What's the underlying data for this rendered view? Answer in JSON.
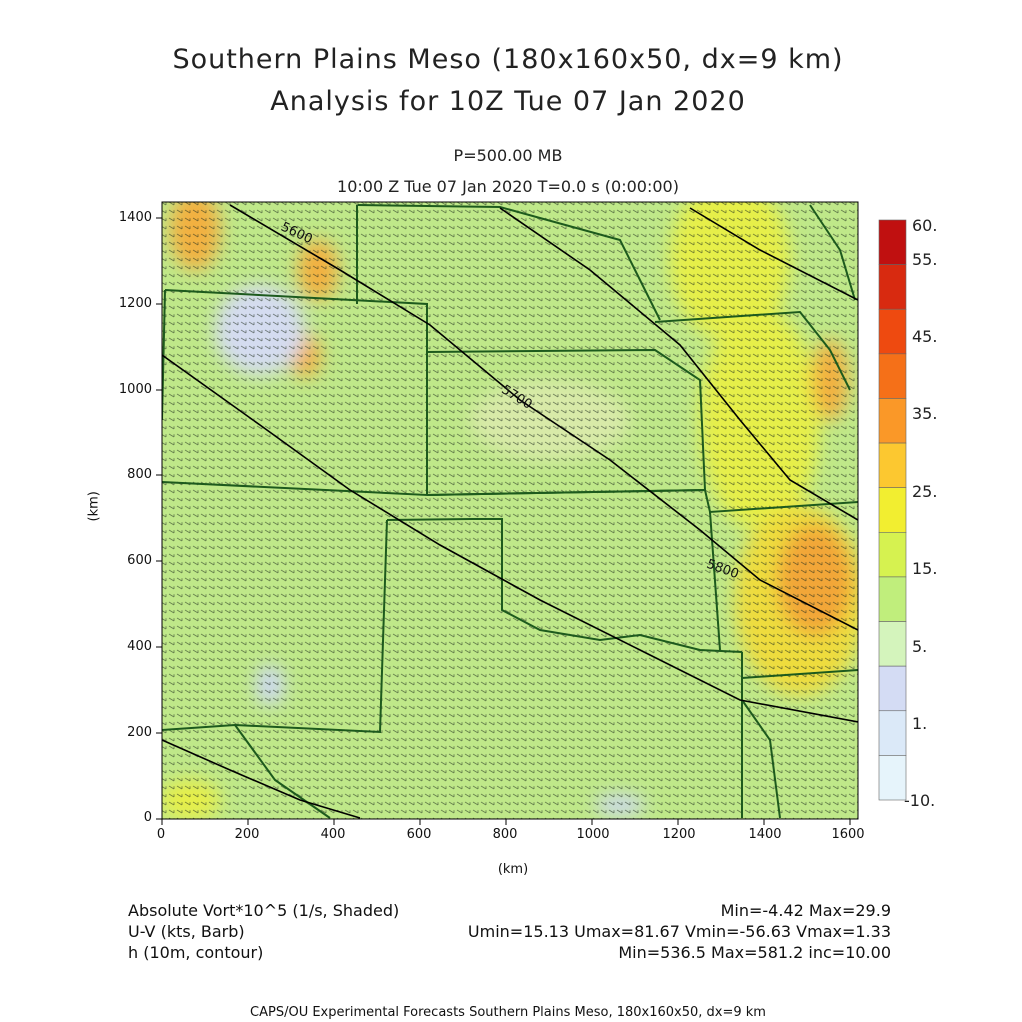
{
  "title": {
    "line1": "Southern Plains Meso (180x160x50, dx=9 km)",
    "line2": "Analysis for 10Z Tue 07 Jan 2020"
  },
  "subtitle": {
    "level": "P=500.00 MB",
    "time": "10:00 Z Tue 07 Jan 2020    T=0.0 s (0:00:00)"
  },
  "axes": {
    "x_label": "(km)",
    "y_label": "(km)",
    "x_ticks": [
      "0",
      "200",
      "400",
      "600",
      "800",
      "1000",
      "1200",
      "1400",
      "1600"
    ],
    "y_ticks": [
      "0",
      "200",
      "400",
      "600",
      "800",
      "1000",
      "1200",
      "1400"
    ]
  },
  "colorbar": {
    "labels": [
      "60.",
      "55.",
      "45.",
      "35.",
      "25.",
      "15.",
      "5.",
      "1.",
      "-10."
    ],
    "colors": [
      "#c01010",
      "#d82a10",
      "#ee4a10",
      "#f57018",
      "#fa9828",
      "#fcc830",
      "#f2ee30",
      "#d6f250",
      "#c0ee7c",
      "#d4f4bc",
      "#d4dcf4",
      "#dbe9f8",
      "#e6f4fb"
    ]
  },
  "map": {
    "contour_labels": [
      "5600",
      "5700",
      "5800"
    ],
    "colors": {
      "base": "#bfe889",
      "yellow": "#e9ef40",
      "orange": "#f2a638",
      "lavender": "#ccd8f2",
      "borders": "#1d5a1d",
      "contour": "#000000",
      "barb": "#1c2a1c"
    }
  },
  "legend": {
    "field1": "Absolute Vort*10^5 (1/s, Shaded)",
    "field1_stats": "Min=-4.42 Max=29.9",
    "field2": "U-V (kts, Barb)",
    "field2_stats": "Umin=15.13 Umax=81.67 Vmin=-56.63 Vmax=1.33",
    "field3": "h (10m, contour)",
    "field3_stats": "Min=536.5 Max=581.2 inc=10.00"
  },
  "footer": "CAPS/OU Experimental Forecasts  Southern Plains Meso, 180x160x50, dx=9 km"
}
